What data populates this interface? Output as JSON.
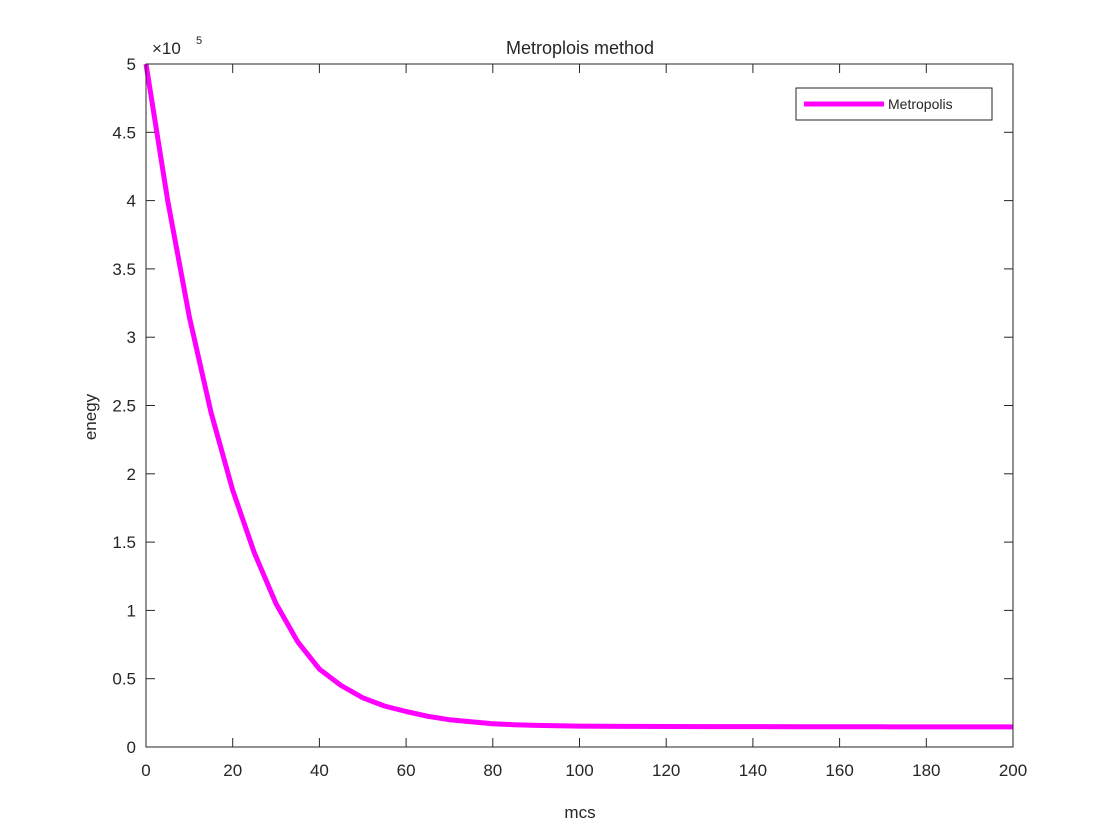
{
  "chart_data": {
    "type": "line",
    "title": "Metroplois method",
    "xlabel": "mcs",
    "ylabel": "enegy",
    "xlim": [
      0,
      200
    ],
    "ylim": [
      0,
      500000
    ],
    "x_ticks": [
      0,
      20,
      40,
      60,
      80,
      100,
      120,
      140,
      160,
      180,
      200
    ],
    "x_tick_labels": [
      "0",
      "20",
      "40",
      "60",
      "80",
      "100",
      "120",
      "140",
      "160",
      "180",
      "200"
    ],
    "y_ticks": [
      0,
      50000,
      100000,
      150000,
      200000,
      250000,
      300000,
      350000,
      400000,
      450000,
      500000
    ],
    "y_tick_labels": [
      "0",
      "0.5",
      "1",
      "1.5",
      "2",
      "2.5",
      "3",
      "3.5",
      "4",
      "4.5",
      "5"
    ],
    "y_multiplier": {
      "base": "×10",
      "exponent": "5"
    },
    "grid": false,
    "legend_position": "top-right",
    "series": [
      {
        "name": "Metropolis",
        "color": "#ff00ff",
        "x": [
          0,
          5,
          10,
          15,
          20,
          25,
          30,
          35,
          40,
          45,
          50,
          55,
          60,
          65,
          70,
          75,
          80,
          85,
          90,
          95,
          100,
          110,
          120,
          130,
          140,
          150,
          160,
          170,
          180,
          190,
          200
        ],
        "y": [
          500000,
          400000,
          315000,
          245000,
          188000,
          142000,
          105000,
          77000,
          57000,
          45000,
          36000,
          30000,
          26000,
          22500,
          20000,
          18500,
          17000,
          16300,
          15800,
          15500,
          15300,
          15100,
          15000,
          14900,
          14900,
          14800,
          14800,
          14800,
          14700,
          14700,
          14700
        ]
      }
    ]
  }
}
